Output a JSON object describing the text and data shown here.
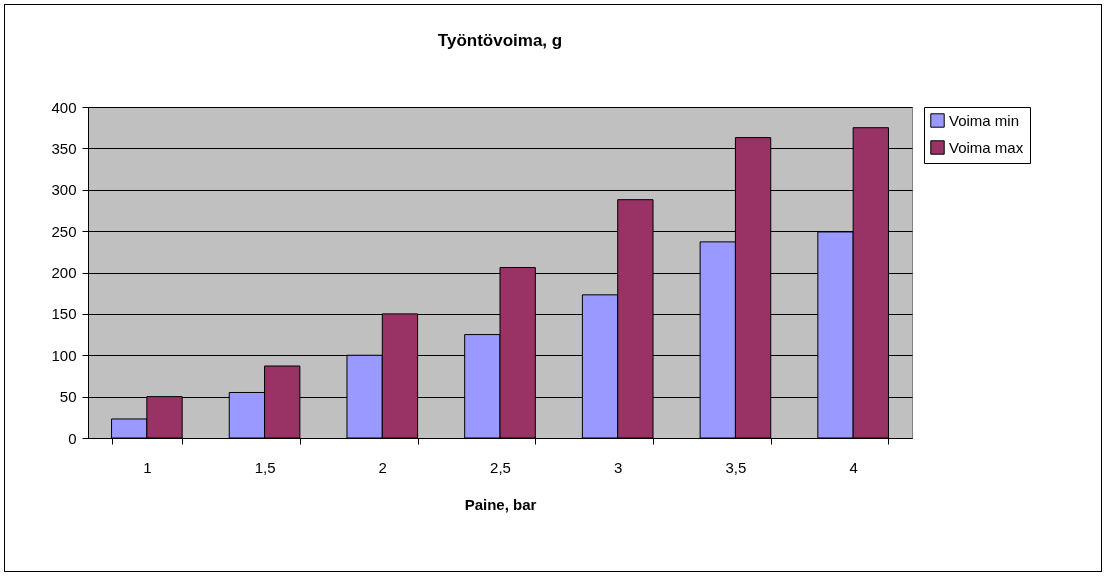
{
  "chart_data": {
    "type": "bar",
    "title": "Työntövoima, g",
    "xlabel": "Paine, bar",
    "categories": [
      "1",
      "1,5",
      "2",
      "2,5",
      "3",
      "3,5",
      "4"
    ],
    "series": [
      {
        "name": "Voima min",
        "color": "#9999ff",
        "values": [
          23,
          55,
          100,
          125,
          173,
          237,
          249
        ]
      },
      {
        "name": "Voima max",
        "color": "#993366",
        "values": [
          50,
          87,
          150,
          206,
          288,
          363,
          375
        ]
      }
    ],
    "ylim": [
      0,
      400
    ],
    "yticks": [
      0,
      50,
      100,
      150,
      200,
      250,
      300,
      350,
      400
    ],
    "grid": "y",
    "legend": "right"
  }
}
